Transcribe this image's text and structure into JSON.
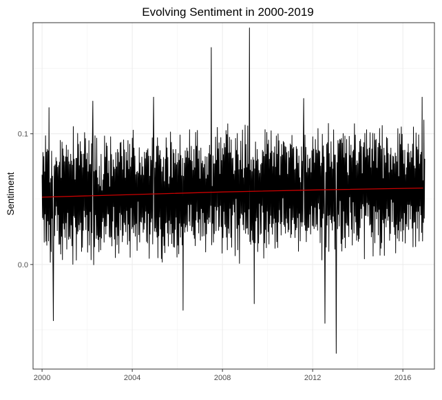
{
  "chart_data": {
    "type": "line",
    "title": "Evolving Sentiment in 2000-2019",
    "xlabel": "",
    "ylabel": "Sentiment",
    "xlim": [
      1999.6,
      2017.4
    ],
    "ylim": [
      -0.08,
      0.185
    ],
    "x_ticks": [
      2000,
      2004,
      2008,
      2012,
      2016
    ],
    "x_tick_labels": [
      "2000",
      "2004",
      "2008",
      "2012",
      "2016"
    ],
    "y_ticks": [
      0.0,
      0.1
    ],
    "y_tick_labels": [
      "0.0",
      "0.1"
    ],
    "grid": true,
    "legend": "none",
    "series": [
      {
        "kind": "raw",
        "color": "#000000",
        "x_start": 2000.0,
        "x_end": 2016.97,
        "peaks": [
          {
            "x": 2000.3,
            "y": 0.12
          },
          {
            "x": 2000.5,
            "y": -0.043
          },
          {
            "x": 2002.25,
            "y": 0.125
          },
          {
            "x": 2004.95,
            "y": 0.128
          },
          {
            "x": 2006.25,
            "y": 0.126
          },
          {
            "x": 2006.25,
            "y": -0.035
          },
          {
            "x": 2007.5,
            "y": 0.166
          },
          {
            "x": 2009.2,
            "y": 0.181
          },
          {
            "x": 2009.4,
            "y": -0.03
          },
          {
            "x": 2011.6,
            "y": 0.127
          },
          {
            "x": 2012.55,
            "y": -0.045
          },
          {
            "x": 2013.05,
            "y": -0.068
          },
          {
            "x": 2016.85,
            "y": 0.128
          }
        ]
      },
      {
        "kind": "trend",
        "color": "#cc0000",
        "x": [
          2000.0,
          2004.0,
          2008.0,
          2012.0,
          2016.9
        ],
        "values": [
          0.0515,
          0.0535,
          0.0555,
          0.057,
          0.0585
        ]
      }
    ]
  }
}
